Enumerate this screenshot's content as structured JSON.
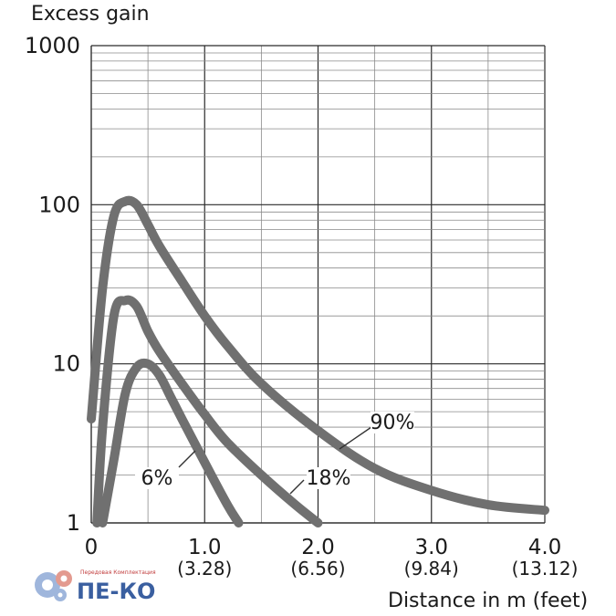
{
  "chart_data": {
    "type": "line",
    "ylabel": "Excess gain",
    "xlabel": "Distance in m (feet)",
    "yscale": "log",
    "ylim": [
      1,
      1000
    ],
    "xlim": [
      0,
      4.0
    ],
    "grid": true,
    "y_ticks": [
      "1",
      "10",
      "100",
      "1000"
    ],
    "x_ticks": [
      {
        "value": 0,
        "label": "0",
        "sub": ""
      },
      {
        "value": 1.0,
        "label": "1.0",
        "sub": "(3.28)"
      },
      {
        "value": 2.0,
        "label": "2.0",
        "sub": "(6.56)"
      },
      {
        "value": 3.0,
        "label": "3.0",
        "sub": "(9.84)"
      },
      {
        "value": 4.0,
        "label": "4.0",
        "sub": "(13.12)"
      }
    ],
    "series": [
      {
        "name": "90%",
        "x": [
          0.0,
          0.1,
          0.2,
          0.3,
          0.4,
          0.5,
          0.6,
          0.8,
          1.0,
          1.2,
          1.5,
          2.0,
          2.5,
          3.0,
          3.5,
          4.0
        ],
        "y": [
          4.5,
          30,
          85,
          105,
          100,
          75,
          55,
          33,
          20,
          13,
          7.5,
          3.8,
          2.2,
          1.6,
          1.3,
          1.2
        ]
      },
      {
        "name": "18%",
        "x": [
          0.05,
          0.1,
          0.2,
          0.3,
          0.4,
          0.5,
          0.6,
          0.8,
          1.0,
          1.2,
          1.5,
          1.8,
          2.0
        ],
        "y": [
          1.0,
          4.0,
          20,
          25,
          23,
          16,
          12,
          7.5,
          4.8,
          3.2,
          2.0,
          1.3,
          1.0
        ]
      },
      {
        "name": "6%",
        "x": [
          0.1,
          0.2,
          0.3,
          0.4,
          0.5,
          0.6,
          0.7,
          0.8,
          1.0,
          1.2,
          1.3
        ],
        "y": [
          1.0,
          2.5,
          6.5,
          9.5,
          10,
          8.5,
          6.2,
          4.5,
          2.4,
          1.3,
          1.0
        ]
      }
    ],
    "annotations": [
      {
        "series": "90%",
        "text": "90%"
      },
      {
        "series": "18%",
        "text": "18%"
      },
      {
        "series": "6%",
        "text": "6%"
      }
    ]
  },
  "watermark": {
    "main": "ПЕ-КО",
    "small": "Передовая Комплектация"
  },
  "colors": {
    "curve": "#707070",
    "grid_major": "#2a2a2a",
    "grid_minor": "#8a8a8a",
    "text": "#1a1a1a",
    "logo_blue": "#3a5fa0",
    "logo_red": "#c03b3b"
  }
}
